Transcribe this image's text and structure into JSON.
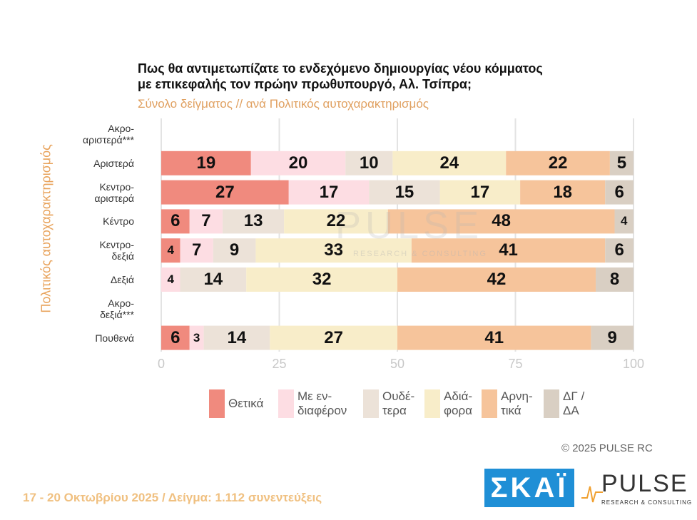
{
  "chart_data": {
    "type": "stacked-bar-horizontal",
    "title": "Πως θα αντιμετωπίζατε το ενδεχόμενο δημιουργίας νέου κόμματος\nμε επικεφαλής τον πρώην πρωθυπουργό, Αλ. Τσίπρα;",
    "subtitle": "Σύνολο δείγματος // ανά Πολιτικός αυτοχαρακτηρισμός",
    "y_label": "Πολιτικός αυτοχαρακτηρισμός",
    "categories": [
      "Ακρο-\nαριστερά***",
      "Αριστερά",
      "Κεντρο-\nαριστερά",
      "Κέντρο",
      "Κεντρο-\nδεξιά",
      "Δεξιά",
      "Ακρο-\nδεξιά***",
      "Πουθενά"
    ],
    "series": [
      {
        "name": "Θετικά",
        "color": "#f08a7e",
        "values": [
          null,
          19,
          27,
          6,
          4,
          null,
          null,
          6
        ]
      },
      {
        "name": "Με εν-\nδιαφέρον",
        "color": "#fddde3",
        "values": [
          null,
          20,
          17,
          7,
          7,
          4,
          null,
          3
        ]
      },
      {
        "name": "Ουδέ-\nτερα",
        "color": "#ece2d8",
        "values": [
          null,
          10,
          15,
          13,
          9,
          14,
          null,
          14
        ]
      },
      {
        "name": "Αδιά-\nφορα",
        "color": "#f8edc9",
        "values": [
          null,
          24,
          17,
          22,
          33,
          32,
          null,
          27
        ]
      },
      {
        "name": "Αρνη-\nτικά",
        "color": "#f6c49b",
        "values": [
          null,
          22,
          18,
          48,
          41,
          42,
          null,
          41
        ]
      },
      {
        "name": "ΔΓ /\nΔΑ",
        "color": "#d9cfc3",
        "values": [
          null,
          5,
          6,
          4,
          6,
          8,
          null,
          9
        ]
      }
    ],
    "xlim": [
      0,
      100
    ],
    "xticks": [
      0,
      25,
      50,
      75,
      100
    ],
    "grid": true,
    "watermark": "PULSE",
    "watermark_sub": "RESEARCH & CONSULTING",
    "copyright": "©  2025  PULSE RC",
    "footer": "17 - 20 Οκτωβρίου 2025  /  Δείγμα:  1.112 συνεντεύξεις",
    "logo_skai": "ΣΚΑΪ",
    "logo_pulse": "PULSE",
    "logo_pulse_sub": "RESEARCH & CONSULTING"
  }
}
